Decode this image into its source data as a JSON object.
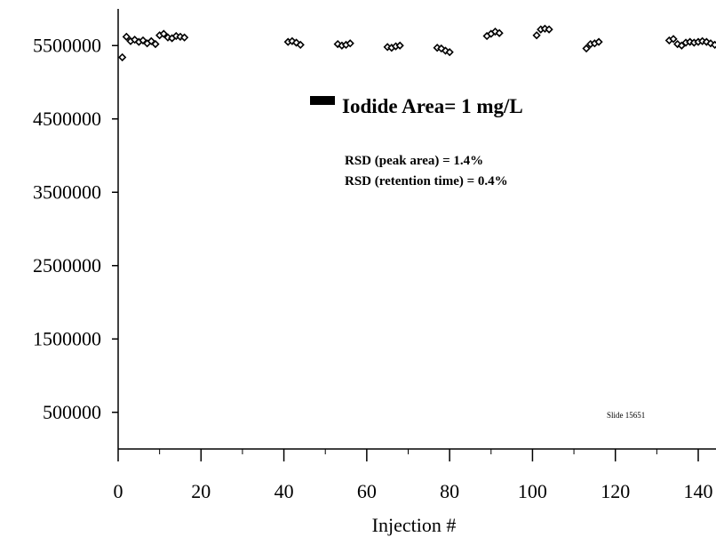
{
  "chart_data": {
    "type": "scatter",
    "title": "",
    "xlabel": "Injection #",
    "ylabel": "",
    "xlim": [
      0,
      145
    ],
    "ylim": [
      0,
      6000000
    ],
    "x_ticks": [
      0,
      20,
      40,
      60,
      80,
      100,
      120,
      140
    ],
    "y_ticks": [
      500000,
      1500000,
      2500000,
      3500000,
      4500000,
      5500000
    ],
    "grid": false,
    "legend": {
      "position": "upper-center",
      "entries": [
        "Iodide Area= 1 mg/L"
      ]
    },
    "annotations": [
      "RSD (peak area) = 1.4%",
      "RSD (retention time) = 0.4%",
      "Slide 15651"
    ],
    "series": [
      {
        "name": "Iodide Area= 1 mg/L",
        "marker": "diamond",
        "color": "#000000",
        "points": [
          [
            1,
            5340000
          ],
          [
            2,
            5620000
          ],
          [
            3,
            5560000
          ],
          [
            4,
            5580000
          ],
          [
            5,
            5550000
          ],
          [
            6,
            5570000
          ],
          [
            7,
            5530000
          ],
          [
            8,
            5560000
          ],
          [
            9,
            5520000
          ],
          [
            10,
            5640000
          ],
          [
            11,
            5660000
          ],
          [
            12,
            5610000
          ],
          [
            13,
            5600000
          ],
          [
            14,
            5630000
          ],
          [
            15,
            5620000
          ],
          [
            16,
            5610000
          ],
          [
            41,
            5550000
          ],
          [
            42,
            5560000
          ],
          [
            43,
            5540000
          ],
          [
            44,
            5510000
          ],
          [
            53,
            5520000
          ],
          [
            54,
            5500000
          ],
          [
            55,
            5510000
          ],
          [
            56,
            5530000
          ],
          [
            65,
            5480000
          ],
          [
            66,
            5470000
          ],
          [
            67,
            5490000
          ],
          [
            68,
            5500000
          ],
          [
            77,
            5470000
          ],
          [
            78,
            5460000
          ],
          [
            79,
            5430000
          ],
          [
            80,
            5410000
          ],
          [
            89,
            5630000
          ],
          [
            90,
            5660000
          ],
          [
            91,
            5690000
          ],
          [
            92,
            5670000
          ],
          [
            101,
            5640000
          ],
          [
            102,
            5720000
          ],
          [
            103,
            5730000
          ],
          [
            104,
            5720000
          ],
          [
            113,
            5460000
          ],
          [
            114,
            5520000
          ],
          [
            115,
            5530000
          ],
          [
            116,
            5550000
          ],
          [
            133,
            5570000
          ],
          [
            134,
            5590000
          ],
          [
            135,
            5520000
          ],
          [
            136,
            5500000
          ],
          [
            137,
            5540000
          ],
          [
            138,
            5550000
          ],
          [
            139,
            5540000
          ],
          [
            140,
            5550000
          ],
          [
            141,
            5560000
          ],
          [
            142,
            5550000
          ],
          [
            143,
            5530000
          ],
          [
            144,
            5510000
          ]
        ]
      }
    ]
  }
}
